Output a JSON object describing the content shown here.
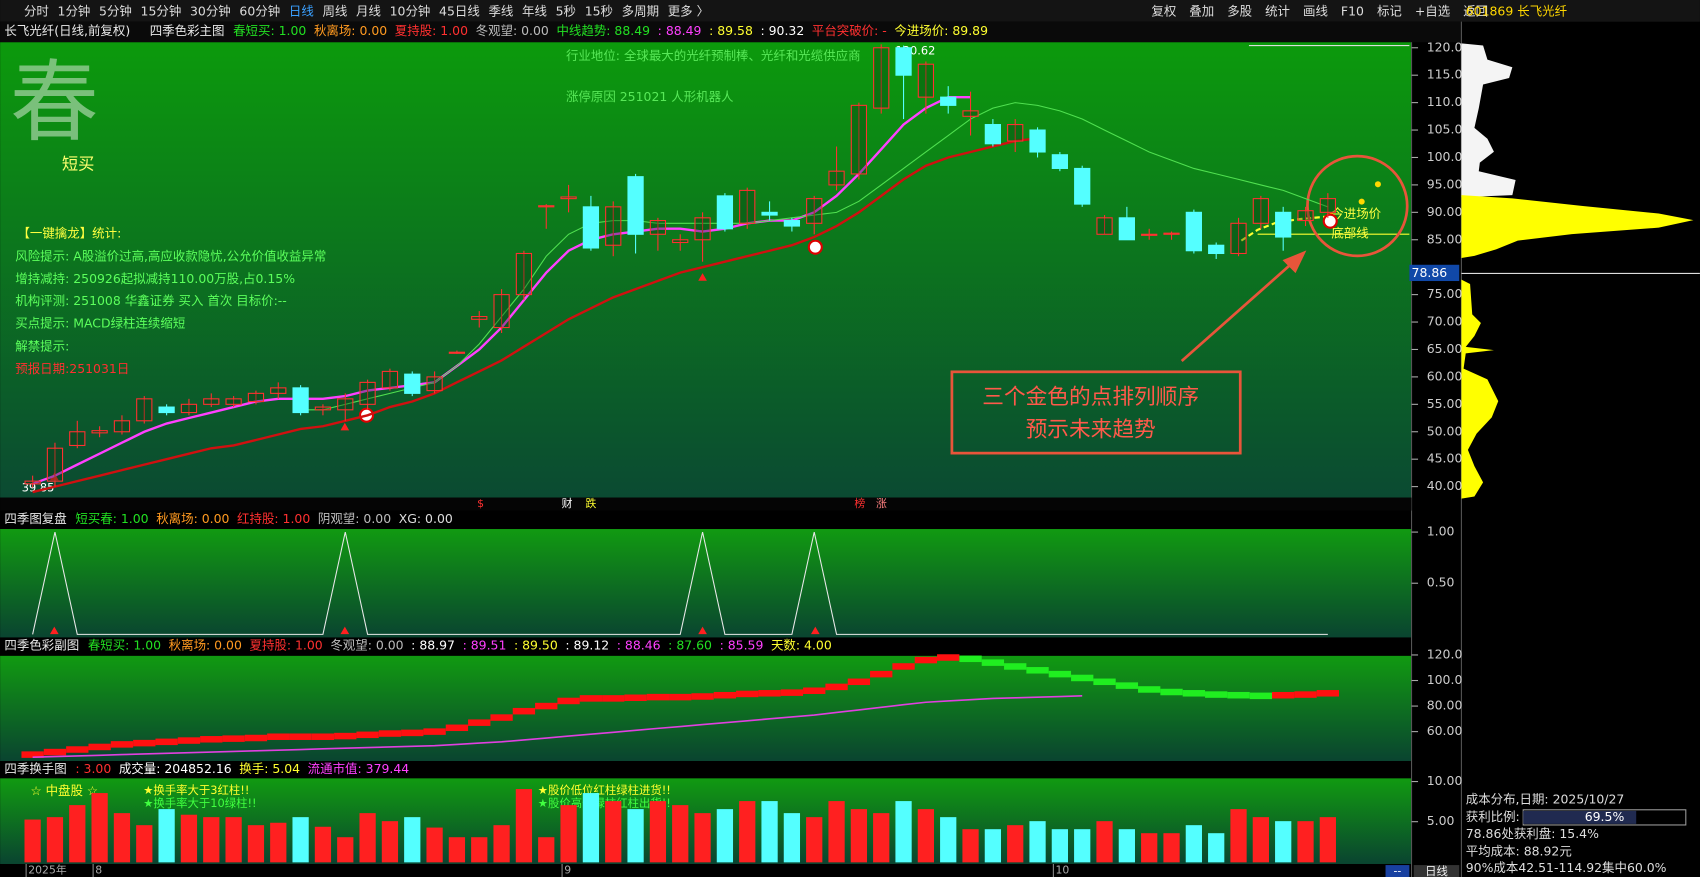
{
  "toolbar": {
    "left": [
      "分时",
      "1分钟",
      "5分钟",
      "15分钟",
      "30分钟",
      "60分钟",
      "日线",
      "周线",
      "月线",
      "10分钟",
      "45日线",
      "季线",
      "年线",
      "5秒",
      "15秒",
      "多周期",
      "更多 〉"
    ],
    "active_index": 6,
    "right": [
      "复权",
      "叠加",
      "多股",
      "统计",
      "画线",
      "F10",
      "标记",
      "+自选",
      "返回"
    ],
    "symbol": "601869 长飞光纤"
  },
  "main": {
    "type": "candlestick",
    "title": "长飞光纤(日线,前复权)",
    "indicator": "四季色彩主图",
    "items": [
      {
        "text": "春短买: 1.00",
        "color": "#22e022"
      },
      {
        "text": "秋离场: 0.00",
        "color": "#ff9a20"
      },
      {
        "text": "夏持股: 1.00",
        "color": "#ff3030"
      },
      {
        "text": "冬观望: 0.00",
        "color": "#bbbbbb"
      },
      {
        "text": "中线趋势: 88.49",
        "color": "#22e022"
      },
      {
        "text": ": 88.49",
        "color": "#ff40ff"
      },
      {
        "text": ": 89.58",
        "color": "#ffff30"
      },
      {
        "text": ": 90.32",
        "color": "#ffffff"
      },
      {
        "text": "平台突破价: -",
        "color": "#ff3030"
      },
      {
        "text": "今进场价: 89.89",
        "color": "#ffff30"
      }
    ],
    "categories": [
      "2025年",
      null,
      null,
      "8",
      null,
      null,
      null,
      null,
      null,
      null,
      null,
      null,
      null,
      null,
      null,
      null,
      null,
      null,
      null,
      null,
      null,
      null,
      null,
      null,
      "9",
      null,
      null,
      null,
      null,
      null,
      null,
      null,
      null,
      null,
      null,
      null,
      null,
      null,
      null,
      null,
      null,
      null,
      null,
      null,
      null,
      null,
      "10",
      null,
      null,
      null,
      null,
      null,
      null,
      null,
      null,
      null,
      null,
      null,
      null
    ],
    "candles": [
      [
        40.5,
        42,
        39.85,
        41
      ],
      [
        41,
        48,
        40,
        47
      ],
      [
        47.5,
        52,
        47,
        50
      ],
      [
        49.8,
        51,
        49,
        50.2
      ],
      [
        50,
        53,
        49.5,
        52
      ],
      [
        52,
        56.5,
        51.5,
        56
      ],
      [
        54.5,
        55,
        53,
        53.5
      ],
      [
        53.5,
        56,
        53,
        55
      ],
      [
        55,
        57,
        54.5,
        56
      ],
      [
        55,
        56.5,
        54.5,
        56
      ],
      [
        55.5,
        57.5,
        55,
        57
      ],
      [
        57,
        59,
        56,
        58
      ],
      [
        58,
        58.5,
        53,
        53.5
      ],
      [
        54,
        55,
        53,
        54.5
      ],
      [
        54,
        57,
        52,
        56
      ],
      [
        55,
        59.5,
        54,
        59
      ],
      [
        58,
        61.5,
        57.5,
        61
      ],
      [
        60.5,
        61,
        56.5,
        57
      ],
      [
        57.5,
        61,
        57,
        60
      ],
      [
        64.5,
        64.8,
        64.2,
        64.5
      ],
      [
        70.5,
        72,
        69,
        71
      ],
      [
        69,
        76,
        68,
        75
      ],
      [
        75,
        83,
        74,
        82.5
      ],
      [
        91,
        91.5,
        87,
        91.2
      ],
      [
        92.5,
        95,
        90,
        92.8
      ],
      [
        91,
        93,
        83,
        83.5
      ],
      [
        84,
        92,
        82,
        91
      ],
      [
        96.5,
        97,
        82.5,
        86
      ],
      [
        86,
        89,
        83,
        88.5
      ],
      [
        84.5,
        86,
        83,
        85
      ],
      [
        85,
        90,
        81,
        89
      ],
      [
        93,
        93.5,
        86.5,
        87
      ],
      [
        88,
        94.5,
        87,
        94
      ],
      [
        90,
        92,
        88.5,
        89.5
      ],
      [
        88.5,
        89,
        86.5,
        87.5
      ],
      [
        88,
        93,
        86,
        92.5
      ],
      [
        95,
        102,
        94,
        97.5
      ],
      [
        97,
        110,
        96,
        109.5
      ],
      [
        109,
        120.62,
        108,
        120
      ],
      [
        120,
        120.4,
        107,
        115
      ],
      [
        111,
        117.5,
        108,
        117
      ],
      [
        111,
        113,
        108,
        109.5
      ],
      [
        107.5,
        112,
        104,
        108.5
      ],
      [
        106,
        107,
        102,
        102.5
      ],
      [
        103,
        107,
        101,
        106
      ],
      [
        105,
        105.5,
        100,
        101
      ],
      [
        100.5,
        101,
        97.5,
        98
      ],
      [
        98,
        98.5,
        91,
        91.5
      ],
      [
        86,
        89.5,
        86,
        89
      ],
      [
        89,
        91,
        85,
        85
      ],
      [
        86,
        87,
        85,
        86
      ],
      [
        86,
        86.5,
        85,
        86.2
      ],
      [
        90,
        90.5,
        82.5,
        83
      ],
      [
        84,
        84.5,
        81.5,
        82.5
      ],
      [
        82.5,
        89,
        82,
        88
      ],
      [
        88,
        93,
        87,
        92.5
      ],
      [
        90,
        91,
        83,
        85.5
      ],
      [
        88.5,
        91,
        87.5,
        90.3
      ],
      [
        90,
        93.5,
        89,
        92.5
      ]
    ],
    "up_color": "#ff3030",
    "down_color": "#54ffff",
    "lines": [
      {
        "color": "#ff40ff",
        "values": [
          40.5,
          42,
          44,
          46,
          48,
          50,
          51.5,
          52.5,
          53.5,
          54.5,
          55.5,
          56,
          56,
          56,
          56.5,
          57.5,
          58,
          58.5,
          59,
          62,
          65,
          69,
          74,
          79,
          83,
          85,
          86,
          86.5,
          87,
          87,
          86.5,
          87,
          88,
          88.5,
          88.5,
          90,
          93,
          97,
          101.5,
          106,
          109,
          111,
          111,
          null,
          null,
          null,
          null,
          null,
          null,
          null,
          null,
          null,
          null,
          null,
          null,
          null,
          null,
          null,
          null
        ]
      },
      {
        "color": "#d01010",
        "values": [
          39,
          40,
          41,
          42,
          43,
          44,
          45,
          46,
          47,
          47.5,
          48.5,
          49.5,
          50.5,
          51,
          52,
          53,
          54.5,
          55.5,
          57,
          59,
          61,
          63,
          65.5,
          68,
          70.5,
          72.5,
          74.5,
          76,
          77.5,
          79,
          80,
          81,
          82,
          83,
          84,
          85.5,
          87.5,
          90,
          93,
          96,
          98.5,
          100,
          101,
          102,
          103,
          103.5,
          null,
          null,
          null,
          null,
          null,
          null,
          null,
          null,
          null,
          null,
          null,
          null,
          null
        ]
      },
      {
        "color": "#50e050",
        "values": [
          null,
          null,
          null,
          null,
          null,
          null,
          null,
          null,
          null,
          null,
          null,
          null,
          54,
          54,
          55,
          56,
          57,
          58,
          59,
          62,
          66,
          71,
          76,
          82,
          86,
          88,
          88.5,
          88.5,
          88,
          88,
          88,
          88,
          88,
          88.5,
          89,
          89.5,
          90,
          92,
          95,
          98,
          101,
          104,
          107,
          109,
          110,
          109.5,
          108.5,
          107,
          105,
          103,
          101,
          99.5,
          98,
          97,
          96,
          95,
          94,
          92.5,
          91
        ]
      }
    ],
    "ylim": [
      38,
      121
    ],
    "yticks": [
      {
        "value": 120,
        "label": "120.0"
      },
      {
        "value": 115,
        "label": "115.0"
      },
      {
        "value": 110,
        "label": "110.0"
      },
      {
        "value": 105,
        "label": "105.0"
      },
      {
        "value": 100,
        "label": "100.0"
      },
      {
        "value": 95,
        "label": "95.00"
      },
      {
        "value": 90,
        "label": "90.00"
      },
      {
        "value": 85,
        "label": "85.00"
      },
      {
        "value": 75,
        "label": "75.00"
      },
      {
        "value": 70,
        "label": "70.00"
      },
      {
        "value": 65,
        "label": "65.00"
      },
      {
        "value": 60,
        "label": "60.00"
      },
      {
        "value": 55,
        "label": "55.00"
      },
      {
        "value": 50,
        "label": "50.00"
      },
      {
        "value": 45,
        "label": "45.00"
      },
      {
        "value": 40,
        "label": "40.00"
      }
    ],
    "current_price": {
      "value": 78.86,
      "label": "78.86"
    },
    "high_label": "120.62",
    "low_label": "39.85",
    "logo": "春",
    "logo_sub": "短买",
    "notes": [
      "行业地位: 全球最大的光纤预制棒、光纤和光缆供应商",
      "涨停原因 251021 人形机器人"
    ],
    "stats": {
      "title": "【一键擒龙】统计:",
      "lines": [
        "风险提示: A股溢价过高,高应收款隐忧,公允价值收益异常",
        "增持减持: 250926起拟减持110.00万股,占0.15%",
        "机构评测: 251008 华鑫证券 买入 首次 目标价:--",
        "买点提示: MACD绿柱连续缩短",
        "解禁提示:"
      ],
      "date": "预报日期:251031日"
    },
    "entry_label": "今进场价",
    "bottom_label": "底部线",
    "markers": [
      "$",
      "财",
      "跌",
      "榜",
      "涨"
    ],
    "callout": [
      "三个金色的点排列顺序",
      "预示未来趋势"
    ]
  },
  "sub_review": {
    "title": "四季图复盘",
    "items": [
      {
        "text": "短买春: 1.00",
        "color": "#22e022"
      },
      {
        "text": "秋离场: 0.00",
        "color": "#ff9a20"
      },
      {
        "text": "红持股: 1.00",
        "color": "#ff3030"
      },
      {
        "text": "阴观望: 0.00",
        "color": "#bbbbbb"
      },
      {
        "text": "XG: 0.00",
        "color": "#dddddd"
      }
    ],
    "values": [
      0,
      1,
      0,
      0,
      0,
      0,
      0,
      0,
      0,
      0,
      0,
      0,
      0,
      0,
      1,
      0,
      0,
      0,
      0,
      0,
      0,
      0,
      0,
      0,
      0,
      0,
      0,
      0,
      0,
      0,
      1,
      0,
      0,
      0,
      0,
      1,
      0,
      0,
      0,
      0,
      0,
      0,
      0,
      0,
      0,
      0,
      0,
      0,
      0,
      0,
      0,
      0,
      0,
      0,
      0,
      0,
      0,
      0,
      0
    ],
    "color": "#e8e8e8",
    "ylim": [
      -0.03,
      1.03
    ],
    "yticks": [
      {
        "value": 1,
        "label": "1.00"
      },
      {
        "value": 0.5,
        "label": "0.50"
      }
    ]
  },
  "sub_color": {
    "title": "四季色彩副图",
    "items": [
      {
        "text": "春短买: 1.00",
        "color": "#22e022"
      },
      {
        "text": "秋离场: 0.00",
        "color": "#ff9a20"
      },
      {
        "text": "夏持股: 1.00",
        "color": "#ff3030"
      },
      {
        "text": "冬观望: 0.00",
        "color": "#bbbbbb"
      },
      {
        "text": ": 88.97",
        "color": "#ffffff"
      },
      {
        "text": ": 89.51",
        "color": "#ff40ff"
      },
      {
        "text": ": 89.50",
        "color": "#ffff30"
      },
      {
        "text": ": 89.12",
        "color": "#ffffff"
      },
      {
        "text": ": 88.46",
        "color": "#ff40ff"
      },
      {
        "text": ": 87.60",
        "color": "#22e022"
      },
      {
        "text": ": 85.59",
        "color": "#ff40ff"
      },
      {
        "text": "天数: 4.00",
        "color": "#ffff30"
      }
    ],
    "ladder": [
      42,
      44,
      46,
      48,
      50,
      51,
      52,
      53,
      54,
      54.5,
      55,
      56,
      56,
      56,
      56.5,
      57.5,
      58.5,
      59,
      60,
      63,
      67,
      71,
      76,
      80,
      84,
      86,
      86,
      86.5,
      87,
      87,
      87.5,
      88.5,
      89.5,
      90,
      90.5,
      92,
      95,
      99,
      105,
      111,
      116,
      118,
      117,
      114,
      111,
      108,
      105,
      102,
      99,
      96,
      93,
      91,
      90,
      89,
      88.5,
      88,
      88.5,
      89,
      90
    ],
    "up_color": "#ff1010",
    "down_color": "#20ee20",
    "line": {
      "color": "#e040e0",
      "values": [
        40,
        40.5,
        41,
        41.5,
        42,
        42.5,
        43,
        43.5,
        44,
        44.5,
        45,
        45.5,
        46,
        46.5,
        47,
        47.5,
        48,
        48.5,
        49,
        50,
        51,
        52,
        53.5,
        55,
        56.5,
        58,
        59.5,
        61,
        62.5,
        64,
        65.5,
        67,
        68.5,
        70,
        71.5,
        73,
        75,
        77,
        79,
        81,
        83,
        84,
        85,
        86,
        86.5,
        87,
        87.5,
        88,
        null,
        null,
        null,
        null,
        null,
        null,
        null,
        null,
        null,
        null,
        null
      ]
    },
    "ylim": [
      37,
      121
    ],
    "yticks": [
      {
        "value": 120,
        "label": "120.0"
      },
      {
        "value": 100,
        "label": "100.0"
      },
      {
        "value": 80,
        "label": "80.00"
      },
      {
        "value": 60,
        "label": "60.00"
      }
    ]
  },
  "sub_turnover": {
    "title": "四季换手图",
    "items": [
      {
        "text": ": 3.00",
        "color": "#ff3030"
      },
      {
        "text": "成交量: 204852.16",
        "color": "#ffffff"
      },
      {
        "text": "换手: 5.04",
        "color": "#ffff30"
      },
      {
        "text": "流通市值: 379.44",
        "color": "#ff40ff"
      }
    ],
    "values": [
      5.2,
      5.5,
      7,
      8.5,
      6,
      4.5,
      6.5,
      5.8,
      5.5,
      5.5,
      4.5,
      4.8,
      5.5,
      4.3,
      3,
      6,
      5,
      5.5,
      4.2,
      3,
      3,
      4.5,
      9,
      3,
      7,
      8.5,
      7.5,
      6.5,
      7.5,
      7,
      6,
      6.5,
      7.5,
      7.5,
      6,
      5.5,
      7.5,
      6.5,
      6,
      7.5,
      6.5,
      5.5,
      4,
      4,
      4.5,
      5,
      4,
      4,
      5,
      4,
      3.5,
      3.5,
      4.5,
      3.5,
      6.5,
      5.5,
      5,
      5,
      5.5
    ],
    "ylim": [
      0,
      10.4
    ],
    "yticks": [
      {
        "value": 10,
        "label": "10.00"
      },
      {
        "value": 5,
        "label": "5.00"
      }
    ],
    "notes": [
      "☆ 中盘股 ☆",
      "★换手率大于3红柱!!",
      "★换手率大于10绿柱!!",
      "★股价低位红柱绿柱进货!!",
      "★股价高位绿柱红柱出货!!"
    ]
  },
  "cost": {
    "title": "成本分布,日期: 2025/10/27",
    "ratio": {
      "label": "获利比例:",
      "value": 69.5,
      "value_label": "69.5%"
    },
    "lines": [
      "78.86处获利盘: 15.4%",
      "平均成本: 88.92元",
      "90%成本42.51-114.92集中60.0%"
    ]
  },
  "footer": {
    "period": "日线",
    "more": "--"
  }
}
